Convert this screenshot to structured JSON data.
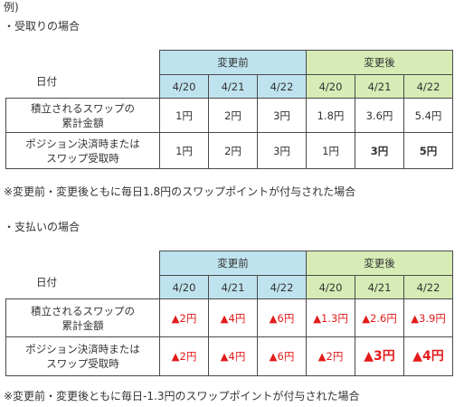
{
  "intro": "例)",
  "section1": {
    "heading": "・受取りの場合",
    "headers": {
      "date_label": "日付",
      "before": "変更前",
      "after": "変更後"
    },
    "dates": [
      "4/20",
      "4/21",
      "4/22",
      "4/20",
      "4/21",
      "4/22"
    ],
    "row1": {
      "label_line1": "積立されるスワップの",
      "label_line2": "累計金額",
      "values": [
        "1円",
        "2円",
        "3円",
        "1.8円",
        "3.6円",
        "5.4円"
      ]
    },
    "row2": {
      "label_line1": "ポジション決済時または",
      "label_line2": "スワップ受取時",
      "values": [
        "1円",
        "2円",
        "3円",
        "1円",
        "3円",
        "5円"
      ]
    },
    "note": "※変更前・変更後ともに毎日1.8円のスワップポイントが付与された場合"
  },
  "section2": {
    "heading": "・支払いの場合",
    "headers": {
      "date_label": "日付",
      "before": "変更前",
      "after": "変更後"
    },
    "dates": [
      "4/20",
      "4/21",
      "4/22",
      "4/20",
      "4/21",
      "4/22"
    ],
    "row1": {
      "label_line1": "積立されるスワップの",
      "label_line2": "累計金額",
      "values": [
        "▲2円",
        "▲4円",
        "▲6円",
        "▲1.3円",
        "▲2.6円",
        "▲3.9円"
      ]
    },
    "row2": {
      "label_line1": "ポジション決済時または",
      "label_line2": "スワップ受取時",
      "values": [
        "▲2円",
        "▲4円",
        "▲6円",
        "▲2円",
        "▲3円",
        "▲4円"
      ]
    },
    "note": "※変更前・変更後ともに毎日-1.3円のスワップポイントが付与された場合"
  },
  "colors": {
    "before_header": "#bfe3ee",
    "after_header": "#d6ebb5",
    "negative": "#e31b1b",
    "text": "#333333",
    "border": "#4a4a4a"
  }
}
